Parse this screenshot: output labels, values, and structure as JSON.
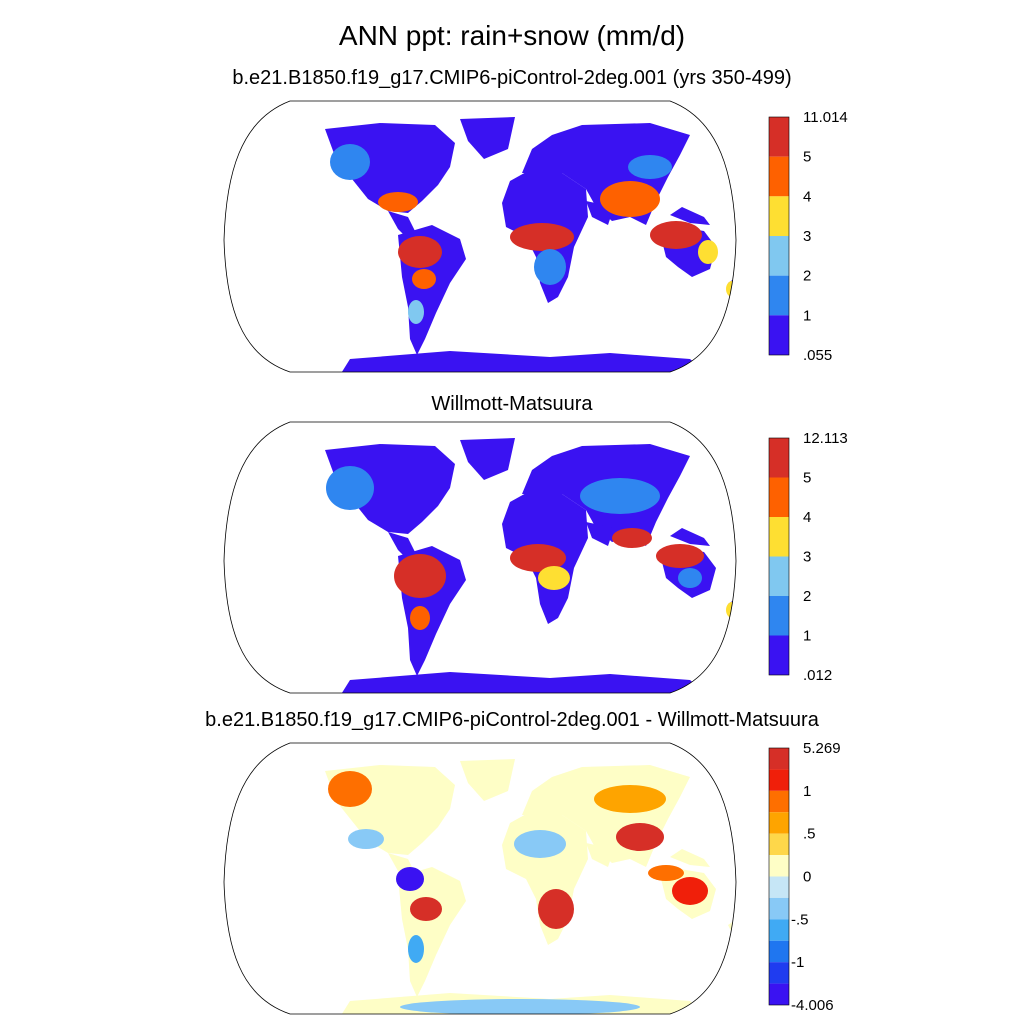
{
  "title": "ANN ppt: rain+snow (mm/d)",
  "panels": [
    {
      "id": "model",
      "title": "b.e21.B1850.f19_g17.CMIP6-piControl-2deg.001 (yrs 350-499)",
      "colorbar": {
        "labels": [
          "11.014",
          "5",
          "4",
          "3",
          "2",
          "1",
          ".055"
        ],
        "colors": [
          "#d62f27",
          "#fe6100",
          "#fedf32",
          "#80c8f0",
          "#2f86f0",
          "#3a12f2"
        ]
      }
    },
    {
      "id": "observed",
      "title": "Willmott-Matsuura",
      "colorbar": {
        "labels": [
          "12.113",
          "5",
          "4",
          "3",
          "2",
          "1",
          ".012"
        ],
        "colors": [
          "#d62f27",
          "#fe6100",
          "#fedf32",
          "#80c8f0",
          "#2f86f0",
          "#3a12f2"
        ]
      }
    },
    {
      "id": "difference",
      "title": "b.e21.B1850.f19_g17.CMIP6-piControl-2deg.001 - Willmott-Matsuura",
      "colorbar": {
        "labels": [
          "5.269",
          "",
          "1",
          "",
          ".5",
          "",
          "0",
          "",
          "-.5",
          "",
          "-1",
          "",
          "-4.006"
        ],
        "colors": [
          "#d62f27",
          "#f01f0a",
          "#fe6f00",
          "#fea400",
          "#fed74a",
          "#fefec6",
          "#c6e6f6",
          "#88c9f6",
          "#40aaf4",
          "#1f76f0",
          "#1f3cf0",
          "#3a12f2"
        ]
      }
    }
  ]
}
